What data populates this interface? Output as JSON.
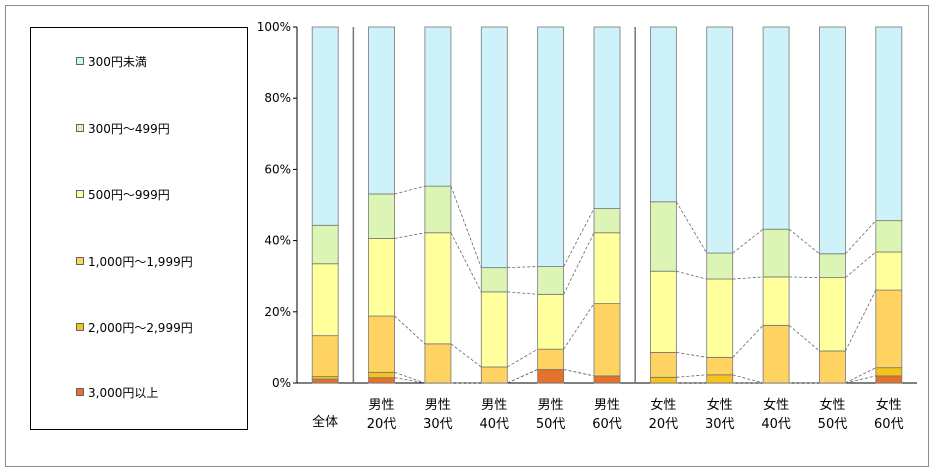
{
  "legend": {
    "items": [
      {
        "label": "300円未満",
        "color": "#cdf2fa"
      },
      {
        "label": "300円～499円",
        "color": "#dcf5b4"
      },
      {
        "label": "500円～999円",
        "color": "#ffff9c"
      },
      {
        "label": "1,000円～1,999円",
        "color": "#ffd361"
      },
      {
        "label": "2,000円～2,999円",
        "color": "#f5c31c"
      },
      {
        "label": "3,000円以上",
        "color": "#e5712a"
      }
    ]
  },
  "chart_data": {
    "type": "bar",
    "stacked": true,
    "percent": true,
    "ylim": [
      0,
      100
    ],
    "yticks": [
      "0%",
      "20%",
      "40%",
      "60%",
      "80%",
      "100%"
    ],
    "categories": [
      [
        "全体"
      ],
      [
        "男性",
        "20代"
      ],
      [
        "男性",
        "30代"
      ],
      [
        "男性",
        "40代"
      ],
      [
        "男性",
        "50代"
      ],
      [
        "男性",
        "60代"
      ],
      [
        "女性",
        "20代"
      ],
      [
        "女性",
        "30代"
      ],
      [
        "女性",
        "40代"
      ],
      [
        "女性",
        "50代"
      ],
      [
        "女性",
        "60代"
      ]
    ],
    "series": [
      {
        "name": "3,000円以上",
        "color": "#e5712a",
        "values": [
          1.1,
          1.5,
          0,
          0,
          3.8,
          2.0,
          0,
          0,
          0,
          0,
          2.0
        ]
      },
      {
        "name": "2,000円～2,999円",
        "color": "#f5c31c",
        "values": [
          0.7,
          1.5,
          0,
          0,
          0,
          0,
          1.6,
          2.3,
          0,
          0,
          2.3
        ]
      },
      {
        "name": "1,000円～1,999円",
        "color": "#ffd361",
        "values": [
          11.5,
          15.8,
          11.0,
          4.5,
          5.7,
          20.3,
          7.0,
          4.9,
          16.2,
          9.0,
          21.8
        ]
      },
      {
        "name": "500円～999円",
        "color": "#ffff9c",
        "values": [
          20.2,
          21.8,
          31.2,
          21.1,
          15.4,
          19.9,
          22.8,
          22.0,
          13.6,
          20.6,
          10.7
        ]
      },
      {
        "name": "300円～499円",
        "color": "#dcf5b4",
        "values": [
          10.8,
          12.5,
          13.1,
          6.8,
          7.8,
          6.8,
          19.5,
          7.3,
          13.4,
          6.7,
          8.8
        ]
      },
      {
        "name": "300円未満",
        "color": "#cdf2fa",
        "values": [
          55.7,
          46.9,
          44.7,
          67.6,
          67.3,
          51.0,
          49.1,
          63.5,
          56.8,
          63.7,
          54.4
        ]
      }
    ],
    "group_separators_after": [
      0,
      5
    ]
  }
}
